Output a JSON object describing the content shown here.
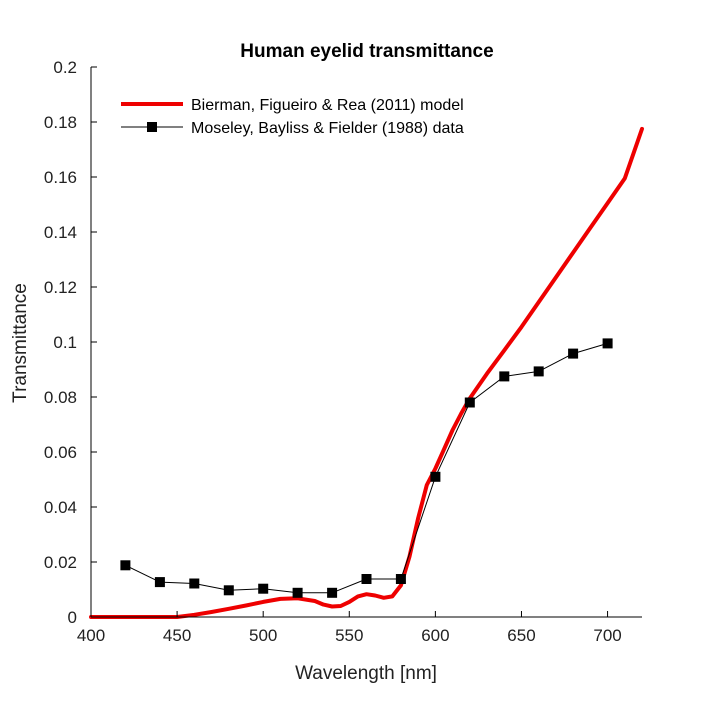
{
  "chart_data": {
    "type": "line",
    "title": "Human eyelid transmittance",
    "xlabel": "Wavelength [nm]",
    "ylabel": "Transmittance",
    "xlim": [
      400,
      720
    ],
    "ylim": [
      0,
      0.2
    ],
    "xticks": [
      400,
      450,
      500,
      550,
      600,
      650,
      700
    ],
    "yticks": [
      0,
      0.02,
      0.04,
      0.06,
      0.08,
      0.1,
      0.12,
      0.14,
      0.16,
      0.18,
      0.2
    ],
    "xtick_labels": [
      "400",
      "450",
      "500",
      "550",
      "600",
      "650",
      "700"
    ],
    "ytick_labels": [
      "0",
      "0.02",
      "0.04",
      "0.06",
      "0.08",
      "0.1",
      "0.12",
      "0.14",
      "0.16",
      "0.18",
      "0.2"
    ],
    "grid": false,
    "legend_position": "top-left",
    "series": [
      {
        "name": "Bierman, Figueiro & Rea (2011) model",
        "color": "#ee0000",
        "style": "line",
        "x": [
          400,
          450,
          460,
          470,
          480,
          490,
          500,
          510,
          520,
          530,
          535,
          540,
          545,
          550,
          555,
          560,
          565,
          570,
          575,
          580,
          585,
          590,
          595,
          600,
          605,
          610,
          615,
          620,
          630,
          640,
          650,
          660,
          670,
          680,
          690,
          700,
          710,
          720
        ],
        "y": [
          0,
          0,
          0.0008,
          0.0018,
          0.003,
          0.0042,
          0.0055,
          0.0066,
          0.0068,
          0.0058,
          0.0045,
          0.0038,
          0.004,
          0.0055,
          0.0075,
          0.0083,
          0.0078,
          0.007,
          0.0075,
          0.0115,
          0.022,
          0.036,
          0.048,
          0.054,
          0.061,
          0.068,
          0.074,
          0.0795,
          0.0885,
          0.097,
          0.1055,
          0.1145,
          0.1235,
          0.1325,
          0.1415,
          0.1505,
          0.1595,
          0.1775
        ]
      },
      {
        "name": "Moseley, Bayliss & Fielder (1988) data",
        "color": "#000000",
        "style": "line-square-markers",
        "x": [
          420,
          440,
          460,
          480,
          500,
          520,
          540,
          560,
          580,
          600,
          620,
          640,
          660,
          680,
          700
        ],
        "y": [
          0.0188,
          0.0127,
          0.0122,
          0.0097,
          0.0103,
          0.0088,
          0.0088,
          0.0138,
          0.0138,
          0.051,
          0.078,
          0.0875,
          0.0893,
          0.0958,
          0.0995
        ]
      }
    ]
  }
}
